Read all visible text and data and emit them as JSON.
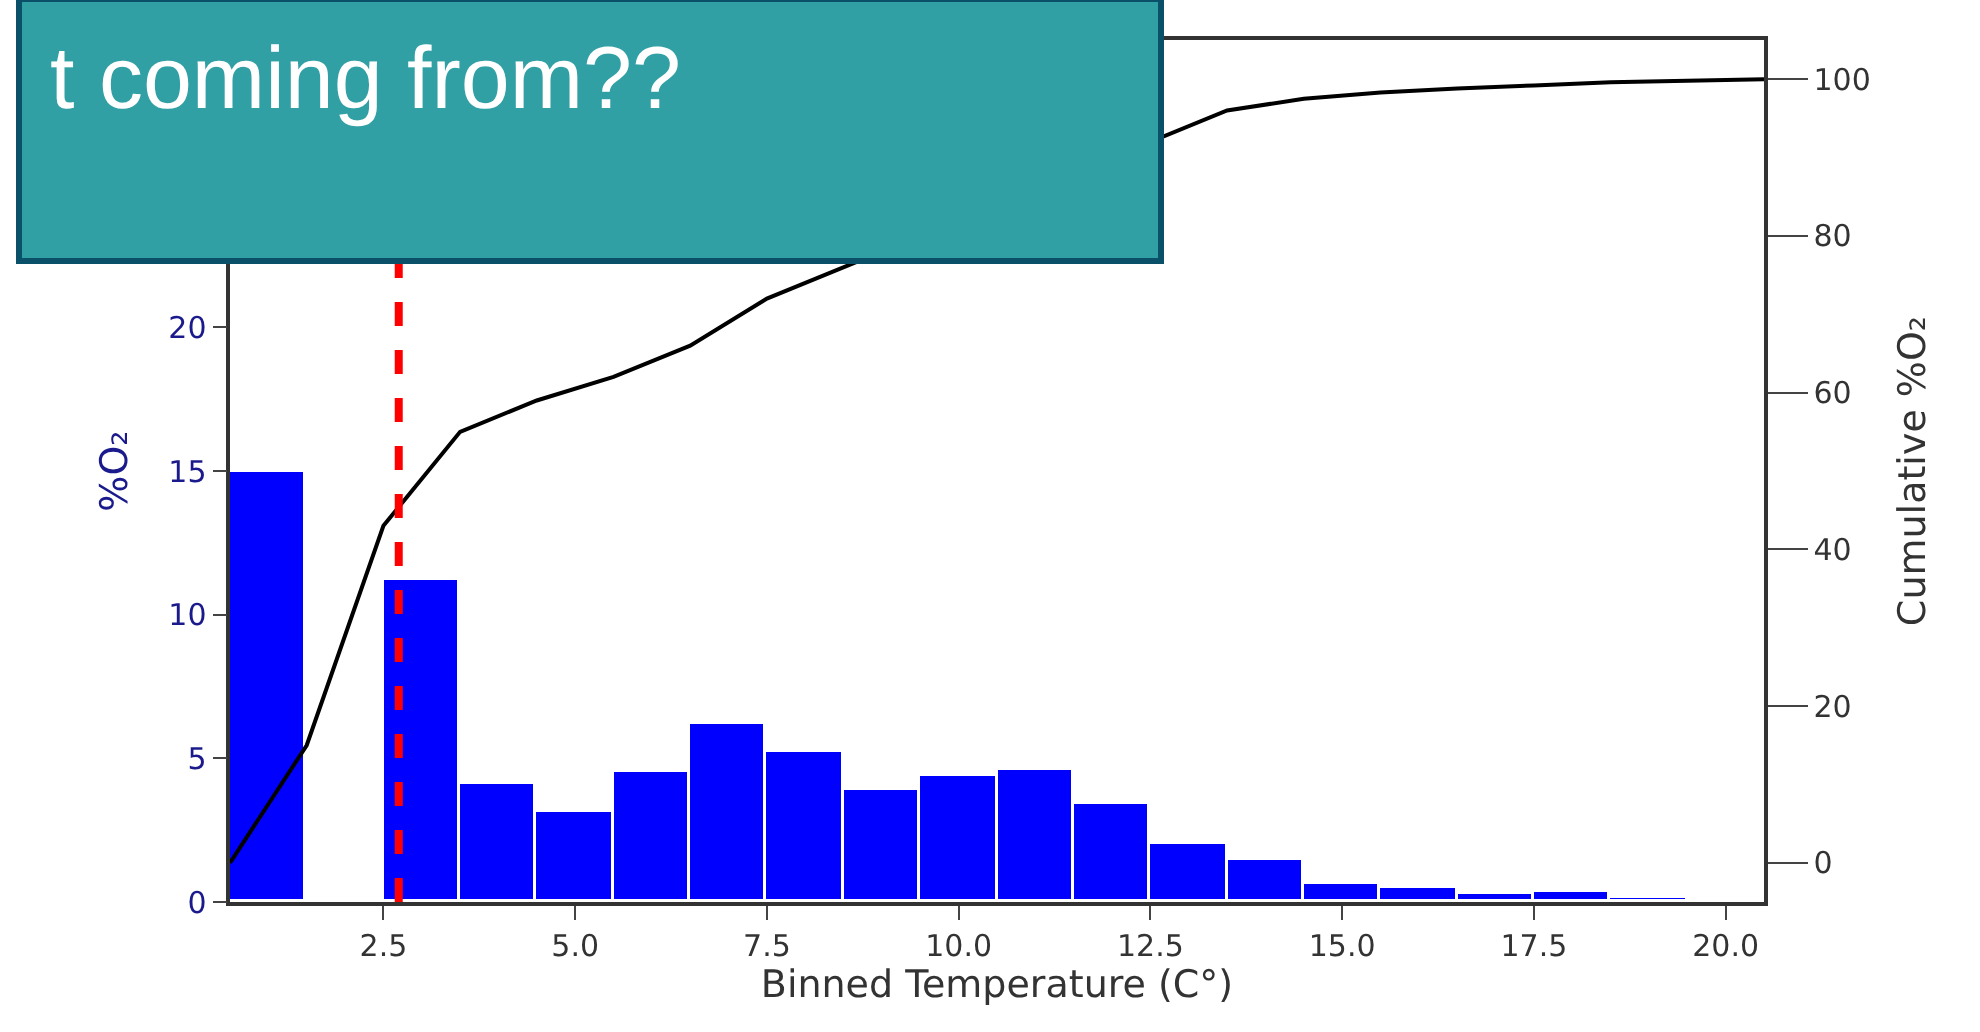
{
  "chart_data": {
    "type": "histogram",
    "bins": [
      0.5,
      1.5,
      2.5,
      3.5,
      4.5,
      5.5,
      6.5,
      7.5,
      8.5,
      9.5,
      10.5,
      11.5,
      12.5,
      13.5,
      14.5,
      15.5,
      16.5,
      17.5,
      18.5,
      19.5,
      20.5
    ],
    "values": [
      15,
      null,
      11.2,
      4.1,
      3.1,
      4.5,
      6.2,
      5.2,
      3.9,
      4.4,
      4.6,
      3.4,
      2.0,
      1.45,
      0.65,
      0.47,
      0.28,
      0.33,
      0.16,
      0.09
    ],
    "color": "#0000ff",
    "series": [
      {
        "type": "line",
        "axis": "y2",
        "color": "#000000",
        "x": [
          0.5,
          1.5,
          2.5,
          3.5,
          4.5,
          5.5,
          6.5,
          7.5,
          8.5,
          9.5,
          10.5,
          11.5,
          12.5,
          13.5,
          14.5,
          15.5,
          16.5,
          17.5,
          18.5,
          19.5,
          20.5
        ],
        "values": [
          0,
          15,
          43,
          55,
          59,
          62,
          66,
          72,
          null,
          null,
          null,
          null,
          null,
          96,
          97.5,
          98.3,
          98.8,
          99.2,
          99.6,
          99.8,
          100
        ]
      }
    ],
    "xlabel": "Binned Temperature (C°)",
    "ylabel": "%O₂",
    "y2label": "Cumulative %O₂",
    "xlim": [
      0.5,
      20.5
    ],
    "xticks": [
      {
        "value": 2.5,
        "label": "2.5"
      },
      {
        "value": 5,
        "label": "5.0"
      },
      {
        "value": 7.5,
        "label": "7.5"
      },
      {
        "value": 10,
        "label": "10.0"
      },
      {
        "value": 12.5,
        "label": "12.5"
      },
      {
        "value": 15,
        "label": "15.0"
      },
      {
        "value": 17.5,
        "label": "17.5"
      },
      {
        "value": 20,
        "label": "20.0"
      }
    ],
    "ylim": [
      0,
      30
    ],
    "yticks": [
      0,
      5,
      10,
      15,
      20
    ],
    "y2lim": [
      -5,
      105
    ],
    "y2ticks": [
      0,
      20,
      40,
      60,
      80,
      100
    ],
    "ref_lines": [
      {
        "axis": "x",
        "value": 2.7,
        "color": "#ff0000",
        "line_style": "dashed"
      }
    ],
    "annotations": [
      "t coming from??"
    ]
  }
}
